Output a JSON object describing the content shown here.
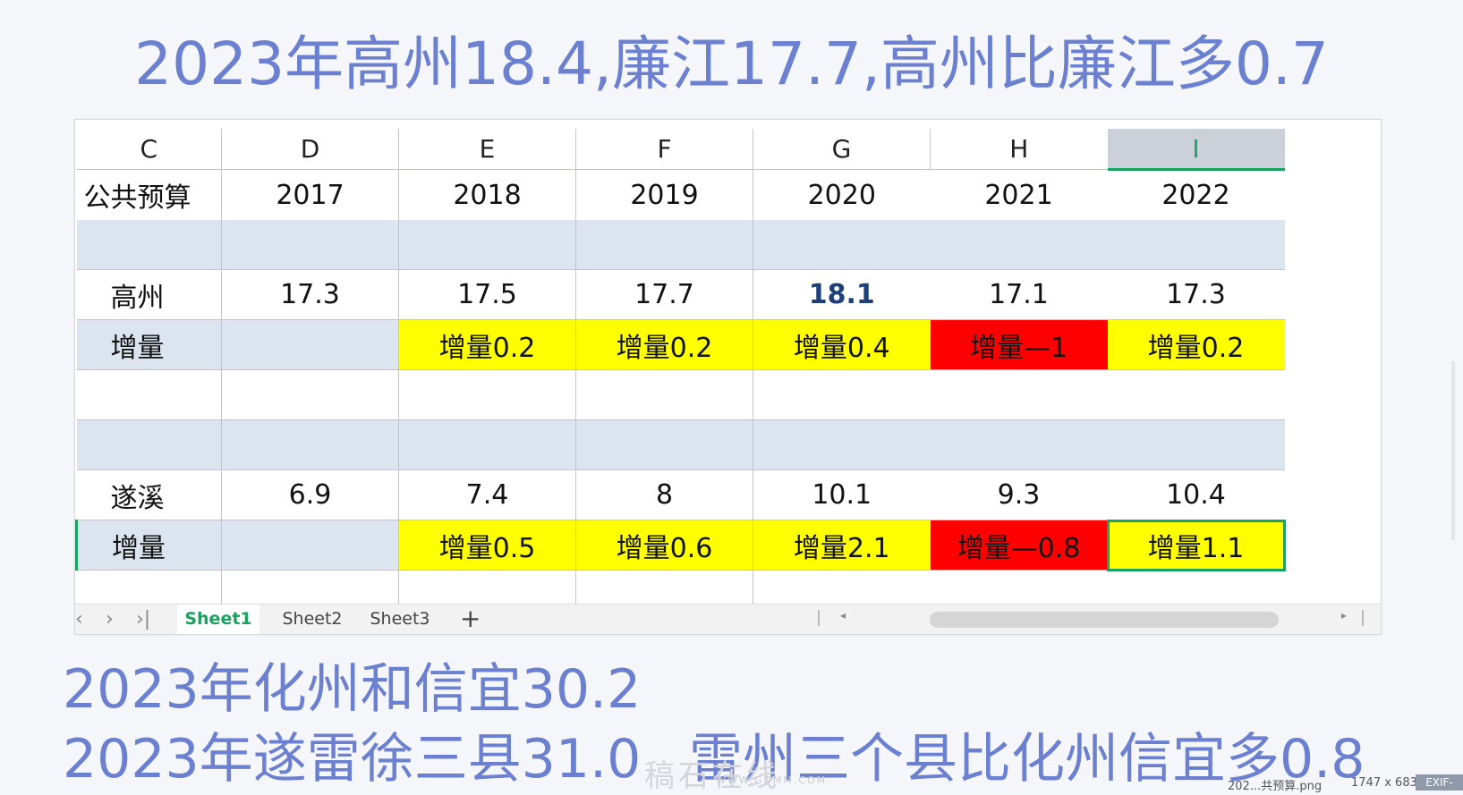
{
  "headline": "2023年高州18.4,廉江17.7,高州比廉江多0.7",
  "notes": {
    "line1": "2023年化州和信宜30.2",
    "line2": "2023年遂雷徐三县31.0",
    "line2b": "雷州三个县比化州信宜多0.8"
  },
  "spreadsheet": {
    "columns": [
      "C",
      "D",
      "E",
      "F",
      "G",
      "H",
      "I"
    ],
    "selected_column": "I",
    "header_row": [
      "公共预算",
      "2017",
      "2018",
      "2019",
      "2020",
      "2021",
      "2022"
    ],
    "gaozhou": {
      "label": "高州",
      "values": [
        "17.3",
        "17.5",
        "17.7",
        "18.1",
        "17.1",
        "17.3"
      ],
      "increase_label": "增量",
      "increases": [
        "",
        "增量0.2",
        "增量0.2",
        "增量0.4",
        "增量—1",
        "增量0.2"
      ]
    },
    "suixi": {
      "label": "遂溪",
      "values": [
        "6.9",
        "7.4",
        "8",
        "10.1",
        "9.3",
        "10.4"
      ],
      "increase_label": "增量",
      "increases": [
        "",
        "增量0.5",
        "增量0.6",
        "增量2.1",
        "增量—0.8",
        "增量1.1"
      ]
    },
    "colors": {
      "increase_positive": "#ffff00",
      "increase_negative": "#ff0000",
      "shaded_row": "#dbe4ef",
      "selection": "#1aa260"
    }
  },
  "tabs": {
    "items": [
      "Sheet1",
      "Sheet2",
      "Sheet3"
    ],
    "active": "Sheet1",
    "add_symbol": "+"
  },
  "watermark": {
    "text": "稿石在线",
    "url_text": "WWW.GDMM.COM"
  },
  "viewer": {
    "filename": "202...共预算.png",
    "dimensions": "1747 x 683",
    "exif_label": "EXIF-"
  }
}
